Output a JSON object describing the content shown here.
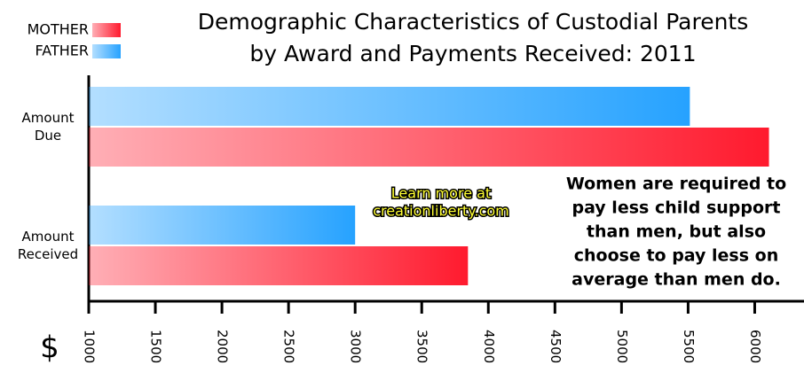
{
  "chart_data": {
    "type": "barh",
    "title": [
      "Demographic Characteristics of Custodial Parents",
      "by Award and Payments Received: 2011"
    ],
    "categories": [
      "Amount Due",
      "Amount Received"
    ],
    "series": [
      {
        "name": "MOTHER",
        "color": "#ff1a2e",
        "values": [
          6107,
          3847
        ]
      },
      {
        "name": "FATHER",
        "color": "#26a2ff",
        "values": [
          5513,
          3000
        ]
      }
    ],
    "xlabel": "$",
    "xlim": [
      1000,
      6370
    ],
    "xticks": [
      1000,
      1500,
      2000,
      2500,
      3000,
      3500,
      4000,
      4500,
      5000,
      5500,
      6000
    ],
    "legend": "top-left",
    "annotation": [
      "Women are required to",
      "pay less child support",
      "than men, but also",
      "choose to pay less on",
      "average than men do."
    ],
    "watermark": [
      "Learn more at",
      "creationliberty.com"
    ]
  }
}
